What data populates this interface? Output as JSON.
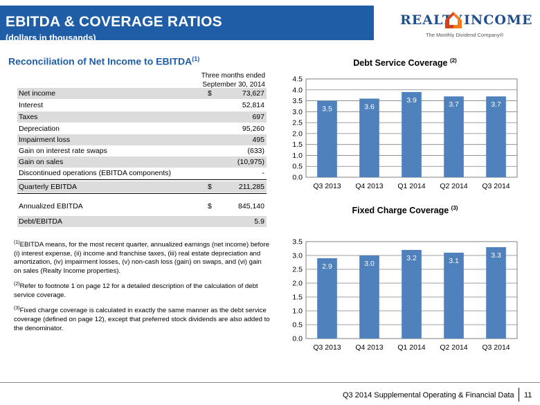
{
  "header": {
    "title": "EBITDA & COVERAGE RATIOS",
    "subtitle": "(dollars in thousands)"
  },
  "logo": {
    "word_left": "REALTY",
    "word_right": "INCOME",
    "tagline": "The Monthly Dividend Company®"
  },
  "reconciliation": {
    "title": "Reconciliation of Net Income to EBITDA",
    "title_note": "(1)",
    "column_header_1": "Three months ended",
    "column_header_2": "September 30, 2014",
    "rows": [
      {
        "label": "Net income",
        "currency": "$",
        "value": "73,627"
      },
      {
        "label": "Interest",
        "currency": "",
        "value": "52,814"
      },
      {
        "label": "Taxes",
        "currency": "",
        "value": "697"
      },
      {
        "label": "Depreciation",
        "currency": "",
        "value": "95,260"
      },
      {
        "label": "Impairment loss",
        "currency": "",
        "value": "495"
      },
      {
        "label": "Gain on interest rate swaps",
        "currency": "",
        "value": "(633)"
      },
      {
        "label": "Gain on sales",
        "currency": "",
        "value": "(10,975)"
      },
      {
        "label": "Discontinued operations (EBITDA components)",
        "currency": "",
        "value": "-"
      },
      {
        "label": "Quarterly EBITDA",
        "currency": "$",
        "value": "211,285"
      },
      {
        "label": "Annualized EBITDA",
        "currency": "$",
        "value": "845,140"
      },
      {
        "label": "Debt/EBITDA",
        "currency": "",
        "value": "5.9"
      }
    ]
  },
  "footnotes": [
    {
      "mark": "(1)",
      "text": "EBITDA means, for the most recent quarter, annualized earnings (net income) before (i) interest expense, (ii) income and franchise taxes, (iii) real estate depreciation and amortization, (iv) impairment losses, (v) non-cash loss (gain) on swaps, and (vi) gain on sales (Realty Income properties)."
    },
    {
      "mark": "(2)",
      "text": "Refer to footnote 1 on page 12 for a detailed description of the calculation of debt service coverage."
    },
    {
      "mark": "(3)",
      "text": "Fixed charge coverage is calculated in exactly the same manner as the debt service coverage (defined on page 12), except that preferred stock dividends are also added to the denominator."
    }
  ],
  "chart_data": [
    {
      "type": "bar",
      "title": "Debt Service Coverage",
      "title_note": "(2)",
      "categories": [
        "Q3 2013",
        "Q4 2013",
        "Q1 2014",
        "Q2 2014",
        "Q3 2014"
      ],
      "values": [
        3.5,
        3.6,
        3.9,
        3.7,
        3.7
      ],
      "data_labels": [
        "3.5",
        "3.6",
        "3.9",
        "3.7",
        "3.7"
      ],
      "ylim": [
        0,
        4.5
      ],
      "yticks": [
        "0.0",
        "0.5",
        "1.0",
        "1.5",
        "2.0",
        "2.5",
        "3.0",
        "3.5",
        "4.0",
        "4.5"
      ],
      "grid": true,
      "color": "#4f81bd"
    },
    {
      "type": "bar",
      "title": "Fixed Charge Coverage",
      "title_note": "(3)",
      "categories": [
        "Q3 2013",
        "Q4 2013",
        "Q1 2014",
        "Q2 2014",
        "Q3 2014"
      ],
      "values": [
        2.9,
        3.0,
        3.2,
        3.1,
        3.3
      ],
      "data_labels": [
        "2.9",
        "3.0",
        "3.2",
        "3.1",
        "3.3"
      ],
      "ylim": [
        0,
        3.5
      ],
      "yticks": [
        "0.0",
        "0.5",
        "1.0",
        "1.5",
        "2.0",
        "2.5",
        "3.0",
        "3.5"
      ],
      "grid": true,
      "color": "#4f81bd"
    }
  ],
  "footer": {
    "text": "Q3 2014 Supplemental Operating & Financial Data",
    "page": "11"
  },
  "colors": {
    "title_band": "#1f5da7",
    "section_title": "#1f5da7",
    "row_shade": "#dcdcdc",
    "bar": "#4f81bd"
  }
}
